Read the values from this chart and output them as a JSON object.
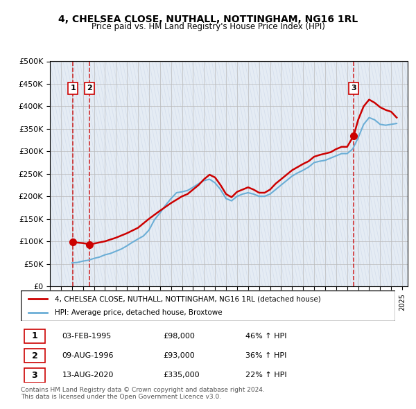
{
  "title": "4, CHELSEA CLOSE, NUTHALL, NOTTINGHAM, NG16 1RL",
  "subtitle": "Price paid vs. HM Land Registry's House Price Index (HPI)",
  "ylabel_ticks": [
    "£0",
    "£50K",
    "£100K",
    "£150K",
    "£200K",
    "£250K",
    "£300K",
    "£350K",
    "£400K",
    "£450K",
    "£500K"
  ],
  "ytick_values": [
    0,
    50000,
    100000,
    150000,
    200000,
    250000,
    300000,
    350000,
    400000,
    450000,
    500000
  ],
  "xmin": 1993.0,
  "xmax": 2025.5,
  "ymin": 0,
  "ymax": 500000,
  "transactions": [
    {
      "date": 1995.085,
      "price": 98000,
      "label": "1"
    },
    {
      "date": 1996.6,
      "price": 93000,
      "label": "2"
    },
    {
      "date": 2020.6,
      "price": 335000,
      "label": "3"
    }
  ],
  "hpi_line_color": "#6baed6",
  "price_line_color": "#cc0000",
  "vline_color": "#cc0000",
  "background_hatch_color": "#d0d8e8",
  "legend_label_red": "4, CHELSEA CLOSE, NUTHALL, NOTTINGHAM, NG16 1RL (detached house)",
  "legend_label_blue": "HPI: Average price, detached house, Broxtowe",
  "table_rows": [
    {
      "num": "1",
      "date": "03-FEB-1995",
      "price": "£98,000",
      "hpi": "46% ↑ HPI"
    },
    {
      "num": "2",
      "date": "09-AUG-1996",
      "price": "£93,000",
      "hpi": "36% ↑ HPI"
    },
    {
      "num": "3",
      "date": "13-AUG-2020",
      "price": "£335,000",
      "hpi": "22% ↑ HPI"
    }
  ],
  "footnote": "Contains HM Land Registry data © Crown copyright and database right 2024.\nThis data is licensed under the Open Government Licence v3.0.",
  "hpi_data_x": [
    1995.0,
    1995.5,
    1996.0,
    1996.5,
    1997.0,
    1997.5,
    1998.0,
    1998.5,
    1999.0,
    1999.5,
    2000.0,
    2000.5,
    2001.0,
    2001.5,
    2002.0,
    2002.5,
    2003.0,
    2003.5,
    2004.0,
    2004.5,
    2005.0,
    2005.5,
    2006.0,
    2006.5,
    2007.0,
    2007.5,
    2008.0,
    2008.5,
    2009.0,
    2009.5,
    2010.0,
    2010.5,
    2011.0,
    2011.5,
    2012.0,
    2012.5,
    2013.0,
    2013.5,
    2014.0,
    2014.5,
    2015.0,
    2015.5,
    2016.0,
    2016.5,
    2017.0,
    2017.5,
    2018.0,
    2018.5,
    2019.0,
    2019.5,
    2020.0,
    2020.5,
    2021.0,
    2021.5,
    2022.0,
    2022.5,
    2023.0,
    2023.5,
    2024.0,
    2024.5
  ],
  "hpi_data_y": [
    52000,
    53000,
    56000,
    58000,
    62000,
    65000,
    70000,
    73000,
    78000,
    83000,
    90000,
    98000,
    105000,
    112000,
    125000,
    148000,
    163000,
    180000,
    195000,
    208000,
    210000,
    213000,
    220000,
    228000,
    235000,
    238000,
    230000,
    215000,
    195000,
    190000,
    200000,
    205000,
    208000,
    205000,
    200000,
    200000,
    205000,
    215000,
    225000,
    235000,
    245000,
    252000,
    258000,
    265000,
    275000,
    278000,
    280000,
    285000,
    290000,
    295000,
    295000,
    305000,
    330000,
    360000,
    375000,
    370000,
    360000,
    358000,
    360000,
    362000
  ],
  "price_data_x": [
    1995.085,
    1995.085,
    1996.0,
    1996.5,
    1996.6,
    1996.6,
    1997.0,
    1998.0,
    1999.0,
    2000.0,
    2001.0,
    2002.0,
    2003.0,
    2004.0,
    2005.0,
    2005.5,
    2006.0,
    2006.5,
    2007.0,
    2007.5,
    2008.0,
    2008.5,
    2009.0,
    2009.5,
    2010.0,
    2010.5,
    2011.0,
    2011.5,
    2012.0,
    2012.5,
    2013.0,
    2013.5,
    2014.0,
    2014.5,
    2015.0,
    2015.5,
    2016.0,
    2016.5,
    2017.0,
    2017.5,
    2018.0,
    2018.5,
    2019.0,
    2019.5,
    2020.0,
    2020.6,
    2020.6,
    2021.0,
    2021.5,
    2022.0,
    2022.5,
    2023.0,
    2023.5,
    2024.0,
    2024.5
  ],
  "price_data_y": [
    98000,
    98000,
    96000,
    94000,
    93000,
    93000,
    95000,
    100000,
    108000,
    118000,
    130000,
    150000,
    168000,
    185000,
    200000,
    205000,
    215000,
    225000,
    238000,
    248000,
    242000,
    225000,
    205000,
    198000,
    210000,
    215000,
    220000,
    215000,
    208000,
    208000,
    215000,
    228000,
    238000,
    248000,
    258000,
    265000,
    272000,
    278000,
    288000,
    292000,
    295000,
    298000,
    305000,
    310000,
    310000,
    335000,
    335000,
    370000,
    400000,
    415000,
    408000,
    398000,
    392000,
    388000,
    375000
  ]
}
